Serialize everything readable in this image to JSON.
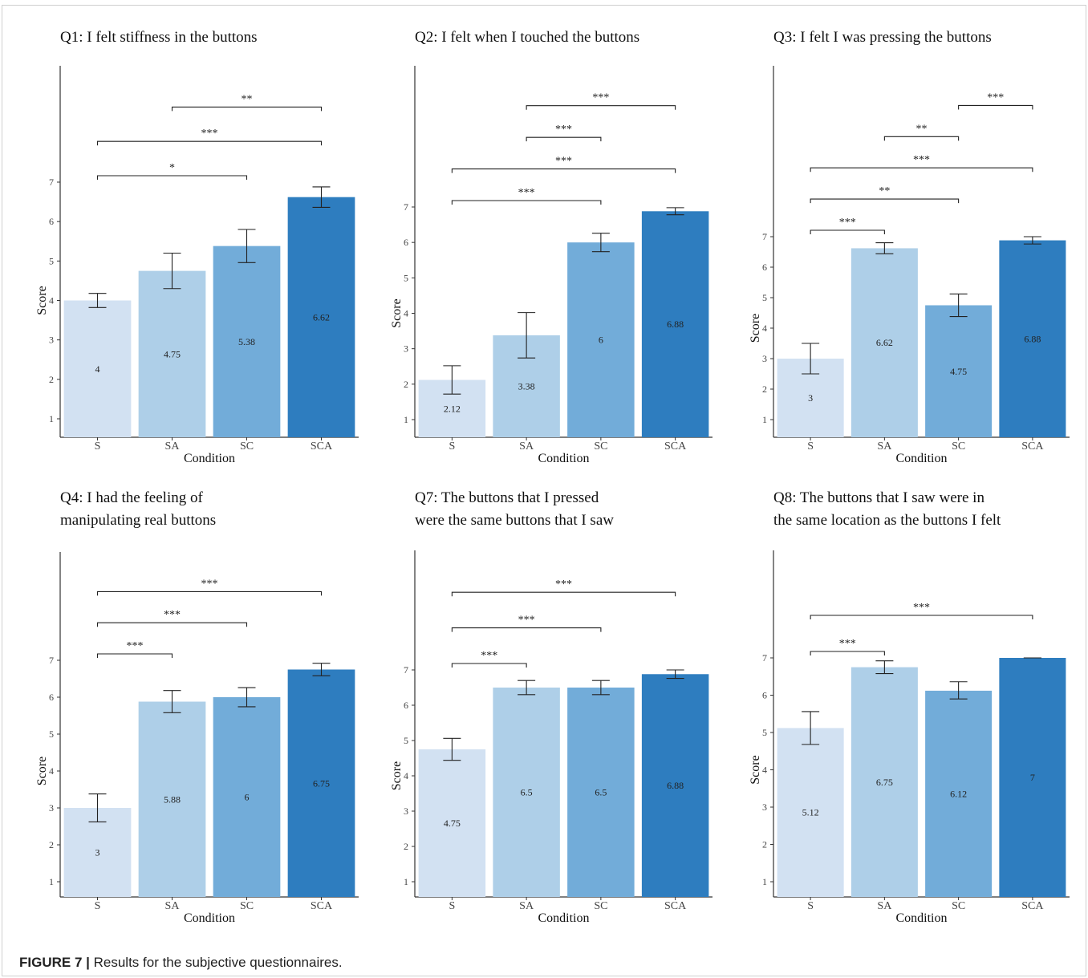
{
  "caption": {
    "label": "FIGURE 7 |",
    "text": " Results for the subjective questionnaires."
  },
  "colors": {
    "S": "#d2e1f2",
    "SA": "#aecfe8",
    "SC": "#72acd9",
    "SCA": "#2e7dbf"
  },
  "chart_data": [
    {
      "type": "bar",
      "title": [
        "Q1: I felt stiffness in the buttons"
      ],
      "xlabel": "Condition",
      "ylabel": "Score",
      "categories": [
        "S",
        "SA",
        "SC",
        "SCA"
      ],
      "values": [
        4,
        4.75,
        5.38,
        6.62
      ],
      "value_labels": [
        "4",
        "4.75",
        "5.38",
        "6.62"
      ],
      "error": [
        [
          3.82,
          4.18
        ],
        [
          4.3,
          5.2
        ],
        [
          4.96,
          5.8
        ],
        [
          6.36,
          6.88
        ]
      ],
      "yticks": [
        1,
        2,
        3,
        4,
        5,
        6,
        7
      ],
      "significance": [
        {
          "from": "S",
          "to": "SC",
          "label": "*"
        },
        {
          "from": "S",
          "to": "SCA",
          "label": "***"
        },
        {
          "from": "SA",
          "to": "SCA",
          "label": "**"
        }
      ]
    },
    {
      "type": "bar",
      "title": [
        "Q2: I felt when I touched the buttons"
      ],
      "xlabel": "Condition",
      "ylabel": "Score",
      "categories": [
        "S",
        "SA",
        "SC",
        "SCA"
      ],
      "values": [
        2.12,
        3.38,
        6,
        6.88
      ],
      "value_labels": [
        "2.12",
        "3.38",
        "6",
        "6.88"
      ],
      "error": [
        [
          1.72,
          2.52
        ],
        [
          2.74,
          4.02
        ],
        [
          5.74,
          6.26
        ],
        [
          6.78,
          6.98
        ]
      ],
      "yticks": [
        1,
        2,
        3,
        4,
        5,
        6,
        7
      ],
      "significance": [
        {
          "from": "S",
          "to": "SC",
          "label": "***"
        },
        {
          "from": "S",
          "to": "SCA",
          "label": "***"
        },
        {
          "from": "SA",
          "to": "SC",
          "label": "***"
        },
        {
          "from": "SA",
          "to": "SCA",
          "label": "***"
        }
      ]
    },
    {
      "type": "bar",
      "title": [
        "Q3: I felt I was pressing the buttons"
      ],
      "xlabel": "Condition",
      "ylabel": "Score",
      "categories": [
        "S",
        "SA",
        "SC",
        "SCA"
      ],
      "values": [
        3,
        6.62,
        4.75,
        6.88
      ],
      "value_labels": [
        "3",
        "6.62",
        "4.75",
        "6.88"
      ],
      "error": [
        [
          2.5,
          3.5
        ],
        [
          6.44,
          6.8
        ],
        [
          4.38,
          5.12
        ],
        [
          6.76,
          7
        ]
      ],
      "yticks": [
        1,
        2,
        3,
        4,
        5,
        6,
        7
      ],
      "significance": [
        {
          "from": "S",
          "to": "SA",
          "label": "***"
        },
        {
          "from": "S",
          "to": "SC",
          "label": "**"
        },
        {
          "from": "S",
          "to": "SCA",
          "label": "***"
        },
        {
          "from": "SA",
          "to": "SC",
          "label": "**"
        },
        {
          "from": "SC",
          "to": "SCA",
          "label": "***"
        }
      ]
    },
    {
      "type": "bar",
      "title": [
        " Q4: I had the feeling of",
        "manipulating real buttons"
      ],
      "xlabel": "Condition",
      "ylabel": "Score",
      "categories": [
        "S",
        "SA",
        "SC",
        "SCA"
      ],
      "values": [
        3,
        5.88,
        6,
        6.75
      ],
      "value_labels": [
        "3",
        "5.88",
        "6",
        "6.75"
      ],
      "error": [
        [
          2.62,
          3.38
        ],
        [
          5.58,
          6.18
        ],
        [
          5.74,
          6.26
        ],
        [
          6.58,
          6.92
        ]
      ],
      "yticks": [
        1,
        2,
        3,
        4,
        5,
        6,
        7
      ],
      "significance": [
        {
          "from": "S",
          "to": "SA",
          "label": "***"
        },
        {
          "from": "S",
          "to": "SC",
          "label": "***"
        },
        {
          "from": "S",
          "to": "SCA",
          "label": "***"
        }
      ]
    },
    {
      "type": "bar",
      "title": [
        "Q7: The buttons that I pressed",
        "were the same buttons that I saw"
      ],
      "xlabel": "Condition",
      "ylabel": "Score",
      "categories": [
        "S",
        "SA",
        "SC",
        "SCA"
      ],
      "values": [
        4.75,
        6.5,
        6.5,
        6.88
      ],
      "value_labels": [
        "4.75",
        "6.5",
        "6.5",
        "6.88"
      ],
      "error": [
        [
          4.44,
          5.06
        ],
        [
          6.3,
          6.7
        ],
        [
          6.3,
          6.7
        ],
        [
          6.76,
          7
        ]
      ],
      "yticks": [
        1,
        2,
        3,
        4,
        5,
        6,
        7
      ],
      "significance": [
        {
          "from": "S",
          "to": "SA",
          "label": "***"
        },
        {
          "from": "S",
          "to": "SC",
          "label": "***"
        },
        {
          "from": "S",
          "to": "SCA",
          "label": "***"
        }
      ]
    },
    {
      "type": "bar",
      "title": [
        "Q8: The buttons that I saw were in",
        "the same location as the buttons I felt"
      ],
      "xlabel": "Condition",
      "ylabel": "Score",
      "categories": [
        "S",
        "SA",
        "SC",
        "SCA"
      ],
      "values": [
        5.12,
        6.75,
        6.12,
        7
      ],
      "value_labels": [
        "5.12",
        "6.75",
        "6.12",
        "7"
      ],
      "error": [
        [
          4.68,
          5.56
        ],
        [
          6.58,
          6.92
        ],
        [
          5.9,
          6.36
        ],
        [
          7,
          7
        ]
      ],
      "yticks": [
        1,
        2,
        3,
        4,
        5,
        6,
        7
      ],
      "significance": [
        {
          "from": "S",
          "to": "SA",
          "label": "***"
        },
        {
          "from": "S",
          "to": "SCA",
          "label": "***"
        }
      ]
    }
  ]
}
